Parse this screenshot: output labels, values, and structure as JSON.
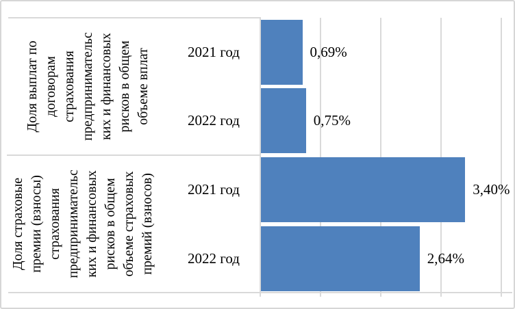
{
  "chart_data": {
    "type": "bar",
    "orientation": "horizontal",
    "title": "",
    "xlabel": "",
    "ylabel": "",
    "xlim": [
      0,
      4
    ],
    "x_unit": "%",
    "gridline_interval": 1,
    "grid": true,
    "legend": false,
    "bar_color": "#4f81bd",
    "gridline_color": "#d9d9d9",
    "groups": [
      {
        "axis_label": "Доля выплат по\nдоговорам\nстрахования\nпредпринимательс\nких и финансовых\nрисков в общем\nобъеме вплат",
        "categories": [
          "2021 год",
          "2022 год"
        ],
        "values": [
          0.69,
          0.75
        ],
        "value_labels": [
          "0,69%",
          "0,75%"
        ]
      },
      {
        "axis_label": "Доля страховые\nпремии (взносы)\nстрахования\nпредпринимательс\nких и финансовых\nрисков в общем\nобъеме страховых\nпремий (взносов)",
        "categories": [
          "2021 год",
          "2022 год"
        ],
        "values": [
          3.4,
          2.64
        ],
        "value_labels": [
          "3,40%",
          "2,64%"
        ]
      }
    ]
  }
}
